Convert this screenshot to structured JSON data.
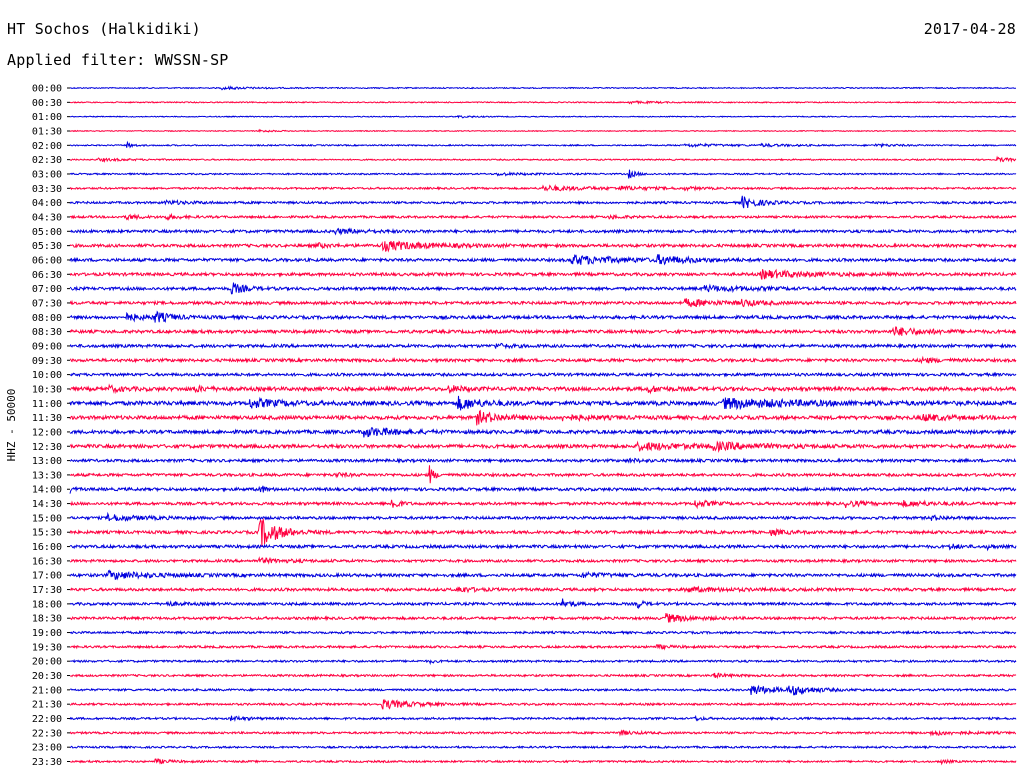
{
  "header": {
    "station": "HT Sochos (Halkidiki)",
    "date": "2017-04-28",
    "filter": "Applied filter: WWSSN-SP"
  },
  "chart_data": {
    "type": "line",
    "title": "HT Sochos (Halkidiki)",
    "ylabel": "HHZ - 50000",
    "colors": {
      "blue": "#0000dd",
      "red": "#ff0040"
    },
    "x_range_minutes": [
      0,
      30
    ],
    "rows": [
      {
        "label": "00:00",
        "color": "blue",
        "noise": 0.6,
        "events": [
          [
            0.16,
            1.2,
            0.02
          ]
        ]
      },
      {
        "label": "00:30",
        "color": "red",
        "noise": 0.6,
        "events": [
          [
            0.59,
            1.0,
            0.02
          ]
        ]
      },
      {
        "label": "01:00",
        "color": "blue",
        "noise": 0.5,
        "events": [
          [
            0.41,
            1.0,
            0.01
          ]
        ]
      },
      {
        "label": "01:30",
        "color": "red",
        "noise": 0.5,
        "events": [
          [
            0.2,
            1.0,
            0.01
          ]
        ]
      },
      {
        "label": "02:00",
        "color": "blue",
        "noise": 0.7,
        "events": [
          [
            0.06,
            3.0,
            0.004
          ],
          [
            0.65,
            1.2,
            0.03
          ],
          [
            0.73,
            1.0,
            0.02
          ],
          [
            0.85,
            1.0,
            0.02
          ]
        ]
      },
      {
        "label": "02:30",
        "color": "red",
        "noise": 0.7,
        "events": [
          [
            0.03,
            1.2,
            0.02
          ],
          [
            0.98,
            2.0,
            0.01
          ]
        ]
      },
      {
        "label": "03:00",
        "color": "blue",
        "noise": 0.8,
        "events": [
          [
            0.59,
            4.5,
            0.005
          ],
          [
            0.45,
            1.2,
            0.02
          ]
        ]
      },
      {
        "label": "03:30",
        "color": "red",
        "noise": 1.0,
        "events": [
          [
            0.5,
            2.5,
            0.03
          ],
          [
            0.58,
            1.5,
            0.02
          ],
          [
            0.65,
            1.2,
            0.01
          ]
        ]
      },
      {
        "label": "04:00",
        "color": "blue",
        "noise": 1.2,
        "events": [
          [
            0.71,
            6.0,
            0.012
          ],
          [
            0.1,
            1.5,
            0.02
          ]
        ]
      },
      {
        "label": "04:30",
        "color": "red",
        "noise": 1.2,
        "events": [
          [
            0.06,
            2.5,
            0.008
          ],
          [
            0.1,
            2.0,
            0.01
          ],
          [
            0.57,
            1.5,
            0.01
          ]
        ]
      },
      {
        "label": "05:00",
        "color": "blue",
        "noise": 1.5,
        "events": [
          [
            0.28,
            2.0,
            0.02
          ]
        ]
      },
      {
        "label": "05:30",
        "color": "red",
        "noise": 1.6,
        "events": [
          [
            0.33,
            4.5,
            0.03
          ],
          [
            0.26,
            2.0,
            0.01
          ]
        ]
      },
      {
        "label": "06:00",
        "color": "blue",
        "noise": 1.6,
        "events": [
          [
            0.53,
            4.5,
            0.03
          ],
          [
            0.62,
            4.0,
            0.02
          ]
        ]
      },
      {
        "label": "06:30",
        "color": "red",
        "noise": 1.6,
        "events": [
          [
            0.73,
            4.0,
            0.03
          ]
        ]
      },
      {
        "label": "07:00",
        "color": "blue",
        "noise": 1.6,
        "events": [
          [
            0.17,
            6.0,
            0.008
          ],
          [
            0.67,
            2.5,
            0.03
          ]
        ]
      },
      {
        "label": "07:30",
        "color": "red",
        "noise": 1.6,
        "events": [
          [
            0.65,
            3.5,
            0.02
          ],
          [
            0.71,
            3.0,
            0.01
          ]
        ]
      },
      {
        "label": "08:00",
        "color": "blue",
        "noise": 1.7,
        "events": [
          [
            0.06,
            3.5,
            0.01
          ],
          [
            0.09,
            5.0,
            0.01
          ]
        ]
      },
      {
        "label": "08:30",
        "color": "red",
        "noise": 1.7,
        "events": [
          [
            0.87,
            4.0,
            0.02
          ]
        ]
      },
      {
        "label": "09:00",
        "color": "blue",
        "noise": 1.6,
        "events": [
          [
            0.45,
            2.0,
            0.01
          ]
        ]
      },
      {
        "label": "09:30",
        "color": "red",
        "noise": 1.6,
        "events": [
          [
            0.9,
            2.5,
            0.01
          ]
        ]
      },
      {
        "label": "10:00",
        "color": "blue",
        "noise": 1.5,
        "events": []
      },
      {
        "label": "10:30",
        "color": "red",
        "noise": 2.0,
        "events": [
          [
            0.04,
            2.5,
            0.01
          ],
          [
            0.13,
            2.5,
            0.01
          ],
          [
            0.4,
            3.0,
            0.01
          ],
          [
            0.61,
            3.0,
            0.01
          ]
        ]
      },
      {
        "label": "11:00",
        "color": "blue",
        "noise": 2.2,
        "events": [
          [
            0.19,
            4.0,
            0.02
          ],
          [
            0.41,
            6.0,
            0.015
          ],
          [
            0.69,
            4.5,
            0.05
          ]
        ]
      },
      {
        "label": "11:30",
        "color": "red",
        "noise": 2.0,
        "events": [
          [
            0.43,
            6.0,
            0.015
          ],
          [
            0.52,
            2.0,
            0.02
          ],
          [
            0.9,
            3.0,
            0.015
          ]
        ]
      },
      {
        "label": "12:00",
        "color": "blue",
        "noise": 1.9,
        "events": [
          [
            0.31,
            4.5,
            0.02
          ]
        ]
      },
      {
        "label": "12:30",
        "color": "red",
        "noise": 1.9,
        "events": [
          [
            0.6,
            3.5,
            0.03
          ],
          [
            0.68,
            3.0,
            0.03
          ]
        ]
      },
      {
        "label": "13:00",
        "color": "blue",
        "noise": 1.5,
        "events": [
          [
            0.59,
            1.5,
            0.01
          ]
        ]
      },
      {
        "label": "13:30",
        "color": "red",
        "noise": 1.5,
        "events": [
          [
            0.38,
            9.0,
            0.003
          ],
          [
            0.28,
            1.5,
            0.01
          ]
        ]
      },
      {
        "label": "14:00",
        "color": "blue",
        "noise": 1.6,
        "events": [
          [
            0.2,
            4.0,
            0.004
          ],
          [
            0.0,
            3.0,
            0.002
          ]
        ]
      },
      {
        "label": "14:30",
        "color": "red",
        "noise": 1.5,
        "events": [
          [
            0.34,
            8.0,
            0.004
          ],
          [
            0.66,
            3.5,
            0.01
          ],
          [
            0.82,
            3.0,
            0.01
          ],
          [
            0.88,
            2.5,
            0.02
          ]
        ]
      },
      {
        "label": "15:00",
        "color": "blue",
        "noise": 1.5,
        "events": [
          [
            0.04,
            3.0,
            0.02
          ],
          [
            0.91,
            2.0,
            0.01
          ]
        ]
      },
      {
        "label": "15:30",
        "color": "red",
        "noise": 1.6,
        "events": [
          [
            0.2,
            16.0,
            0.012
          ],
          [
            0.74,
            2.5,
            0.01
          ]
        ]
      },
      {
        "label": "16:00",
        "color": "blue",
        "noise": 1.6,
        "events": [
          [
            0.93,
            3.0,
            0.005
          ],
          [
            0.97,
            2.0,
            0.004
          ]
        ]
      },
      {
        "label": "16:30",
        "color": "red",
        "noise": 1.4,
        "events": [
          [
            0.2,
            2.0,
            0.02
          ]
        ]
      },
      {
        "label": "17:00",
        "color": "blue",
        "noise": 1.6,
        "events": [
          [
            0.04,
            3.5,
            0.03
          ],
          [
            0.54,
            2.0,
            0.02
          ]
        ]
      },
      {
        "label": "17:30",
        "color": "red",
        "noise": 1.5,
        "events": [
          [
            0.41,
            3.0,
            0.01
          ],
          [
            0.65,
            2.0,
            0.03
          ]
        ]
      },
      {
        "label": "18:00",
        "color": "blue",
        "noise": 1.4,
        "events": [
          [
            0.52,
            5.0,
            0.006
          ],
          [
            0.6,
            4.0,
            0.004
          ],
          [
            0.1,
            2.0,
            0.01
          ]
        ]
      },
      {
        "label": "18:30",
        "color": "red",
        "noise": 1.4,
        "events": [
          [
            0.63,
            4.0,
            0.015
          ]
        ]
      },
      {
        "label": "19:00",
        "color": "blue",
        "noise": 1.2,
        "events": []
      },
      {
        "label": "19:30",
        "color": "red",
        "noise": 1.2,
        "events": [
          [
            0.62,
            1.5,
            0.01
          ]
        ]
      },
      {
        "label": "20:00",
        "color": "blue",
        "noise": 1.1,
        "events": [
          [
            0.38,
            1.5,
            0.004
          ]
        ]
      },
      {
        "label": "20:30",
        "color": "red",
        "noise": 1.1,
        "events": [
          [
            0.68,
            2.0,
            0.01
          ]
        ]
      },
      {
        "label": "21:00",
        "color": "blue",
        "noise": 1.1,
        "events": [
          [
            0.72,
            5.0,
            0.015
          ],
          [
            0.76,
            5.0,
            0.015
          ]
        ]
      },
      {
        "label": "21:30",
        "color": "red",
        "noise": 1.1,
        "events": [
          [
            0.33,
            4.5,
            0.02
          ]
        ]
      },
      {
        "label": "22:00",
        "color": "blue",
        "noise": 1.1,
        "events": [
          [
            0.17,
            2.0,
            0.01
          ],
          [
            0.66,
            2.0,
            0.005
          ]
        ]
      },
      {
        "label": "22:30",
        "color": "red",
        "noise": 1.1,
        "events": [
          [
            0.58,
            2.0,
            0.01
          ],
          [
            0.91,
            2.0,
            0.02
          ]
        ]
      },
      {
        "label": "23:00",
        "color": "blue",
        "noise": 1.0,
        "events": []
      },
      {
        "label": "23:30",
        "color": "red",
        "noise": 1.0,
        "events": [
          [
            0.09,
            2.0,
            0.01
          ],
          [
            0.92,
            2.0,
            0.005
          ]
        ]
      }
    ]
  }
}
